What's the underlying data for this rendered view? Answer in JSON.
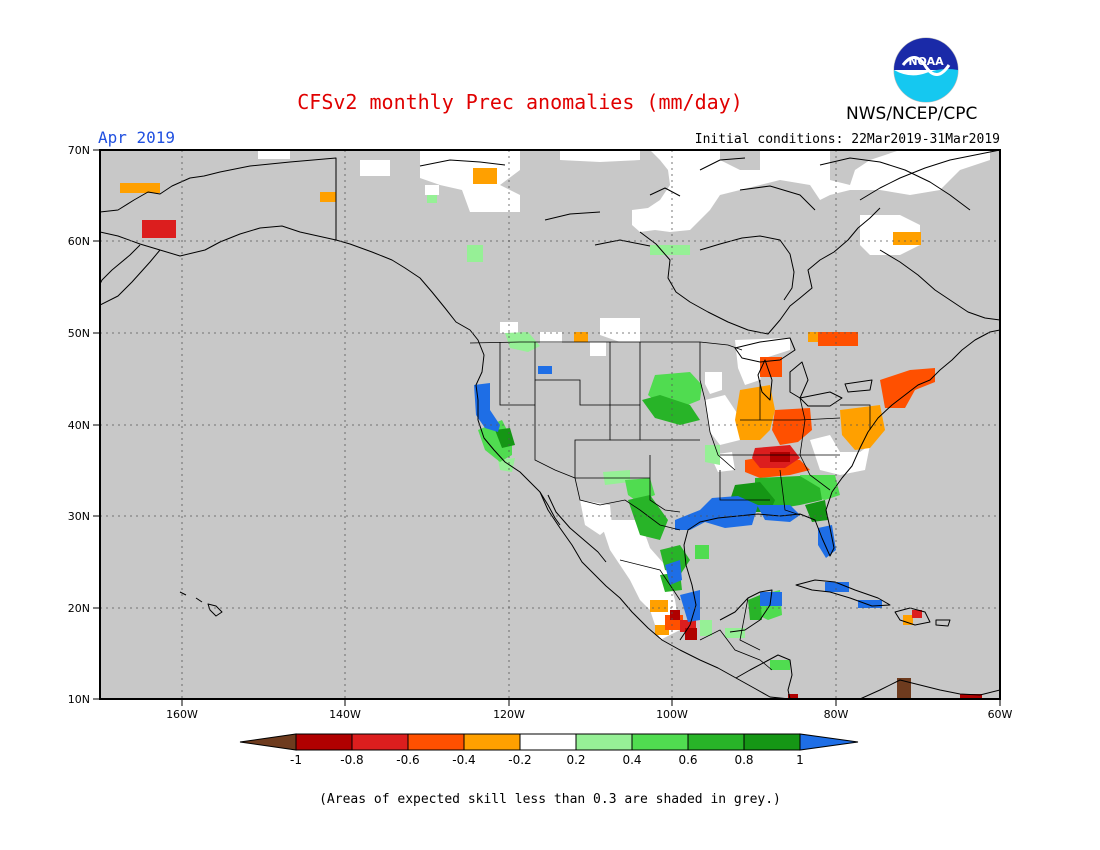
{
  "header": {
    "title": "CFSv2 monthly Prec anomalies (mm/day)",
    "period": "Apr 2019",
    "initial_conditions": "Initial conditions: 22Mar2019-31Mar2019",
    "agency": "NWS/NCEP/CPC",
    "logo_text": "NOAA"
  },
  "map": {
    "lat_labels": [
      "70N",
      "60N",
      "50N",
      "40N",
      "30N",
      "20N",
      "10N"
    ],
    "lon_labels": [
      "160W",
      "140W",
      "120W",
      "100W",
      "80W",
      "60W"
    ],
    "land_color": "#c8c8c8"
  },
  "legend": {
    "tick_labels": [
      "-1",
      "-0.8",
      "-0.6",
      "-0.4",
      "-0.2",
      "0.2",
      "0.4",
      "0.6",
      "0.8",
      "1"
    ],
    "colors": [
      "#6e3b1e",
      "#b00000",
      "#dc1e1e",
      "#ff5000",
      "#ffa000",
      "#ffffff",
      "#96f096",
      "#50dc50",
      "#28b428",
      "#159615",
      "#1e6ee6"
    ],
    "note": "(Areas of expected skill less than 0.3 are shaded in grey.)"
  }
}
